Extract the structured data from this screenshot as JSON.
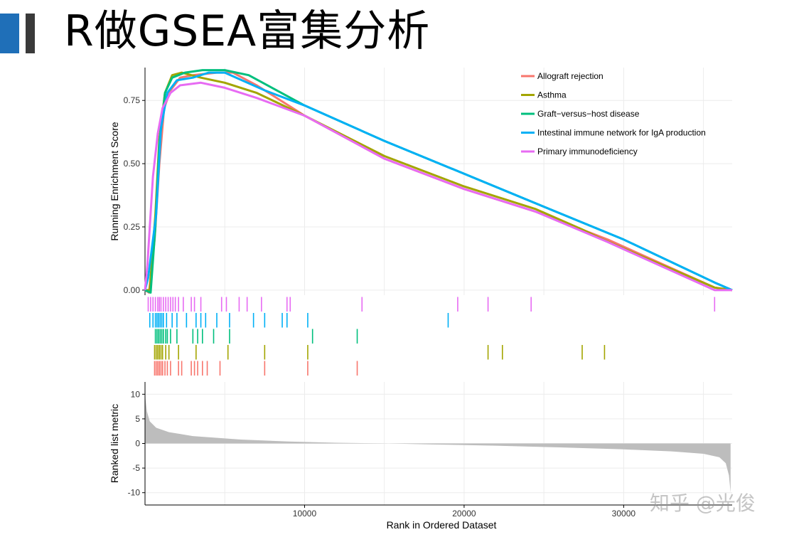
{
  "slide": {
    "title": "R做GSEA富集分析",
    "accent_colors": [
      "#1f6fb8",
      "#3a3a3a"
    ]
  },
  "watermark": "知乎 @光俊",
  "chart_data": {
    "type": "line",
    "xlabel": "Rank in Ordered Dataset",
    "xlim": [
      0,
      36800
    ],
    "x_ticks": [
      10000,
      20000,
      30000
    ],
    "grid": true,
    "legend_position": "top-right",
    "panels": {
      "running_es": {
        "ylabel": "Running Enrichment Score",
        "ylim": [
          -0.02,
          0.88
        ],
        "y_ticks": [
          0.0,
          0.25,
          0.5,
          0.75
        ],
        "y_tick_labels": [
          "0.00",
          "0.25",
          "0.50",
          "0.75"
        ]
      },
      "hits": {},
      "ranked_metric": {
        "ylabel": "Ranked list metric",
        "ylim": [
          -12.5,
          12.5
        ],
        "y_ticks": [
          10,
          5,
          0,
          -5,
          -10
        ],
        "y_tick_labels": [
          "10",
          "5",
          "0",
          "-5",
          "-10"
        ],
        "fill_color": "#bdbdbd",
        "profile": [
          {
            "x": 0,
            "y": 11.5
          },
          {
            "x": 30,
            "y": 9
          },
          {
            "x": 120,
            "y": 6.5
          },
          {
            "x": 300,
            "y": 4.5
          },
          {
            "x": 700,
            "y": 3.2
          },
          {
            "x": 1500,
            "y": 2.3
          },
          {
            "x": 3000,
            "y": 1.5
          },
          {
            "x": 6000,
            "y": 0.8
          },
          {
            "x": 9000,
            "y": 0.4
          },
          {
            "x": 12000,
            "y": 0.15
          },
          {
            "x": 15000,
            "y": 0.02
          },
          {
            "x": 18000,
            "y": -0.2
          },
          {
            "x": 22000,
            "y": -0.45
          },
          {
            "x": 26000,
            "y": -0.8
          },
          {
            "x": 30000,
            "y": -1.2
          },
          {
            "x": 33000,
            "y": -1.6
          },
          {
            "x": 35000,
            "y": -2.1
          },
          {
            "x": 36000,
            "y": -2.8
          },
          {
            "x": 36400,
            "y": -4.0
          },
          {
            "x": 36600,
            "y": -6.5
          },
          {
            "x": 36700,
            "y": -10
          }
        ]
      }
    },
    "series": [
      {
        "name": "Allograft rejection",
        "color": "#f8766d",
        "es": [
          {
            "x": 0,
            "y": 0
          },
          {
            "x": 250,
            "y": -0.01
          },
          {
            "x": 600,
            "y": 0.2
          },
          {
            "x": 900,
            "y": 0.5
          },
          {
            "x": 1200,
            "y": 0.72
          },
          {
            "x": 1600,
            "y": 0.79
          },
          {
            "x": 2200,
            "y": 0.84
          },
          {
            "x": 3000,
            "y": 0.85
          },
          {
            "x": 4500,
            "y": 0.86
          },
          {
            "x": 5500,
            "y": 0.86
          },
          {
            "x": 7000,
            "y": 0.81
          },
          {
            "x": 10000,
            "y": 0.69
          },
          {
            "x": 15000,
            "y": 0.52
          },
          {
            "x": 20000,
            "y": 0.4
          },
          {
            "x": 24500,
            "y": 0.31
          },
          {
            "x": 29000,
            "y": 0.2
          },
          {
            "x": 35700,
            "y": 0.01
          },
          {
            "x": 36800,
            "y": 0.0
          }
        ],
        "hits": [
          600,
          700,
          800,
          900,
          1000,
          1100,
          1250,
          1400,
          1600,
          2100,
          2300,
          2900,
          3100,
          3300,
          3600,
          3900,
          4700,
          7500,
          10200,
          13300
        ]
      },
      {
        "name": "Asthma",
        "color": "#a3a500",
        "es": [
          {
            "x": 0,
            "y": 0
          },
          {
            "x": 300,
            "y": 0.0
          },
          {
            "x": 650,
            "y": 0.3
          },
          {
            "x": 900,
            "y": 0.6
          },
          {
            "x": 1250,
            "y": 0.78
          },
          {
            "x": 1700,
            "y": 0.85
          },
          {
            "x": 2300,
            "y": 0.86
          },
          {
            "x": 3500,
            "y": 0.84
          },
          {
            "x": 5000,
            "y": 0.82
          },
          {
            "x": 7000,
            "y": 0.78
          },
          {
            "x": 10000,
            "y": 0.69
          },
          {
            "x": 15000,
            "y": 0.53
          },
          {
            "x": 20000,
            "y": 0.41
          },
          {
            "x": 24500,
            "y": 0.32
          },
          {
            "x": 27400,
            "y": 0.24
          },
          {
            "x": 28700,
            "y": 0.2
          },
          {
            "x": 35700,
            "y": 0.01
          },
          {
            "x": 36800,
            "y": 0.0
          }
        ],
        "hits": [
          600,
          700,
          800,
          900,
          1000,
          1100,
          1300,
          1500,
          2100,
          3200,
          5200,
          7500,
          10200,
          21500,
          22400,
          27400,
          28800
        ]
      },
      {
        "name": "Graft−versus−host disease",
        "color": "#00bf7d",
        "es": [
          {
            "x": 0,
            "y": 0
          },
          {
            "x": 350,
            "y": -0.01
          },
          {
            "x": 650,
            "y": 0.25
          },
          {
            "x": 900,
            "y": 0.58
          },
          {
            "x": 1250,
            "y": 0.78
          },
          {
            "x": 1700,
            "y": 0.84
          },
          {
            "x": 2500,
            "y": 0.86
          },
          {
            "x": 3600,
            "y": 0.87
          },
          {
            "x": 5000,
            "y": 0.87
          },
          {
            "x": 6500,
            "y": 0.85
          },
          {
            "x": 10000,
            "y": 0.73
          },
          {
            "x": 15000,
            "y": 0.59
          },
          {
            "x": 20000,
            "y": 0.46
          },
          {
            "x": 25000,
            "y": 0.33
          },
          {
            "x": 30000,
            "y": 0.2
          },
          {
            "x": 35700,
            "y": 0.03
          },
          {
            "x": 36800,
            "y": 0.0
          }
        ],
        "hits": [
          650,
          750,
          850,
          950,
          1050,
          1150,
          1300,
          1400,
          1600,
          2000,
          3000,
          3300,
          3600,
          4300,
          5300,
          10500,
          13300
        ]
      },
      {
        "name": "Intestinal immune network for IgA production",
        "color": "#00b0f6",
        "es": [
          {
            "x": 0,
            "y": 0
          },
          {
            "x": 200,
            "y": 0.05
          },
          {
            "x": 700,
            "y": 0.3
          },
          {
            "x": 1000,
            "y": 0.64
          },
          {
            "x": 1400,
            "y": 0.78
          },
          {
            "x": 2000,
            "y": 0.83
          },
          {
            "x": 3000,
            "y": 0.84
          },
          {
            "x": 4000,
            "y": 0.86
          },
          {
            "x": 5000,
            "y": 0.86
          },
          {
            "x": 7500,
            "y": 0.79
          },
          {
            "x": 10000,
            "y": 0.73
          },
          {
            "x": 15000,
            "y": 0.59
          },
          {
            "x": 20000,
            "y": 0.46
          },
          {
            "x": 25000,
            "y": 0.33
          },
          {
            "x": 30000,
            "y": 0.2
          },
          {
            "x": 35700,
            "y": 0.03
          },
          {
            "x": 36800,
            "y": 0.0
          }
        ],
        "hits": [
          300,
          500,
          650,
          750,
          850,
          950,
          1050,
          1150,
          1350,
          1700,
          2000,
          2600,
          3200,
          3500,
          3800,
          4500,
          5300,
          6800,
          7500,
          8600,
          8900,
          10200,
          19000
        ]
      },
      {
        "name": "Primary immunodeficiency",
        "color": "#e76bf3",
        "es": [
          {
            "x": 0,
            "y": 0
          },
          {
            "x": 150,
            "y": 0.1
          },
          {
            "x": 300,
            "y": 0.25
          },
          {
            "x": 500,
            "y": 0.45
          },
          {
            "x": 800,
            "y": 0.62
          },
          {
            "x": 1100,
            "y": 0.72
          },
          {
            "x": 1600,
            "y": 0.78
          },
          {
            "x": 2200,
            "y": 0.81
          },
          {
            "x": 3500,
            "y": 0.82
          },
          {
            "x": 5000,
            "y": 0.8
          },
          {
            "x": 7000,
            "y": 0.76
          },
          {
            "x": 10000,
            "y": 0.69
          },
          {
            "x": 15000,
            "y": 0.52
          },
          {
            "x": 20000,
            "y": 0.4
          },
          {
            "x": 24500,
            "y": 0.31
          },
          {
            "x": 29000,
            "y": 0.19
          },
          {
            "x": 35700,
            "y": 0.0
          },
          {
            "x": 36800,
            "y": 0.0
          }
        ],
        "hits": [
          200,
          350,
          500,
          650,
          800,
          900,
          1000,
          1150,
          1300,
          1450,
          1600,
          1750,
          1900,
          2100,
          2400,
          2900,
          3100,
          3500,
          4800,
          5100,
          5900,
          6400,
          7300,
          8900,
          9100,
          13600,
          19600,
          21500,
          24200,
          35700
        ]
      }
    ]
  }
}
